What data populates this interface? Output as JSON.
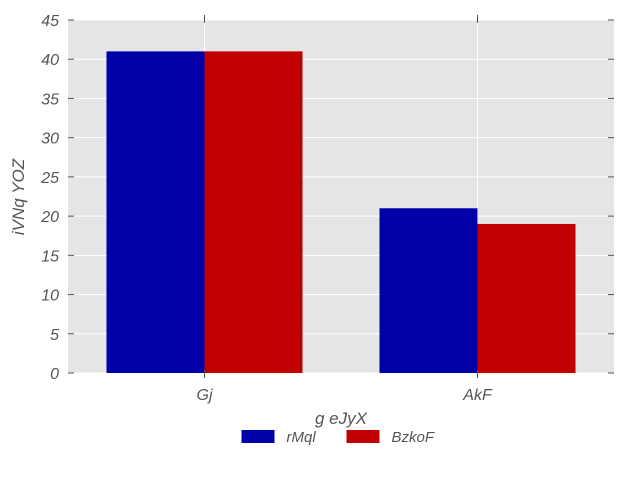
{
  "chart_data": {
    "type": "bar",
    "title": "",
    "xlabel": "g eJyX",
    "ylabel": "iVNq YOZ",
    "categories": [
      "Gj",
      "AkF"
    ],
    "series": [
      {
        "name": "rMql",
        "values": [
          41,
          21
        ],
        "color": "#0000a8"
      },
      {
        "name": "BzkoF",
        "values": [
          41,
          19
        ],
        "color": "#c00000"
      }
    ],
    "ylim": [
      0,
      45
    ],
    "yticks": [
      0,
      5,
      10,
      15,
      20,
      25,
      30,
      35,
      40,
      45
    ],
    "grid": true,
    "background": "#e5e5e5",
    "legend_position": "bottom-center"
  }
}
